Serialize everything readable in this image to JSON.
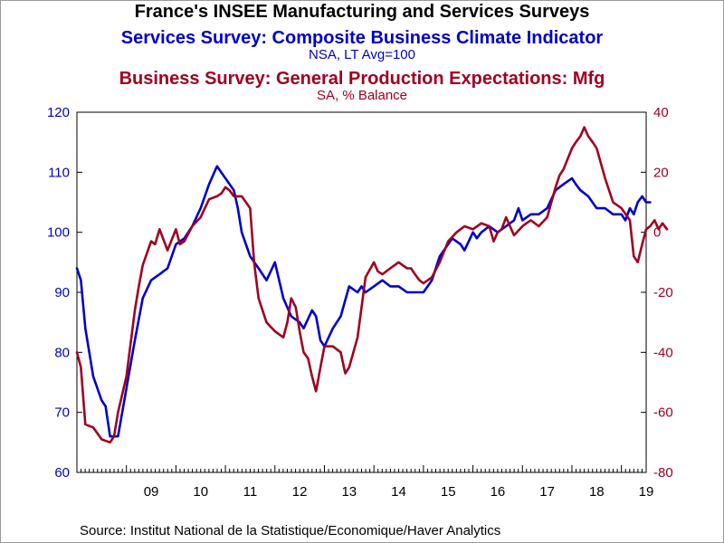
{
  "header": {
    "title": "France's INSEE Manufacturing and Services Surveys",
    "series1_title": "Services Survey: Composite Business Climate Indicator",
    "series1_units": "NSA, LT Avg=100",
    "series2_title": "Business Survey: General Production Expectations: Mfg",
    "series2_units": "SA, % Balance"
  },
  "footer": {
    "source": "Source:  Institut National de la Statistique/Economique/Haver Analytics"
  },
  "colors": {
    "series1": "#0000cc",
    "series2": "#a00020"
  },
  "chart_data": {
    "type": "line",
    "x_ticks": [
      "09",
      "10",
      "11",
      "12",
      "13",
      "14",
      "15",
      "16",
      "17",
      "18",
      "19"
    ],
    "x_range": [
      2008.0,
      2019.5
    ],
    "y_left": {
      "ticks": [
        60,
        70,
        80,
        90,
        100,
        110,
        120
      ],
      "range": [
        60,
        120
      ]
    },
    "y_right": {
      "ticks": [
        -80,
        -60,
        -40,
        -20,
        0,
        20,
        40
      ],
      "range": [
        -80,
        40
      ]
    },
    "grid": false,
    "series": [
      {
        "axis": "left",
        "color": "#0000cc",
        "points": [
          [
            2008.0,
            94
          ],
          [
            2008.08,
            92
          ],
          [
            2008.17,
            84
          ],
          [
            2008.33,
            76
          ],
          [
            2008.5,
            72
          ],
          [
            2008.58,
            71
          ],
          [
            2008.67,
            66
          ],
          [
            2008.83,
            66
          ],
          [
            2009.0,
            74
          ],
          [
            2009.17,
            82
          ],
          [
            2009.33,
            89
          ],
          [
            2009.5,
            92
          ],
          [
            2009.67,
            93
          ],
          [
            2009.83,
            94
          ],
          [
            2010.0,
            98
          ],
          [
            2010.17,
            99
          ],
          [
            2010.33,
            101
          ],
          [
            2010.5,
            104
          ],
          [
            2010.67,
            108
          ],
          [
            2010.83,
            111
          ],
          [
            2011.0,
            109
          ],
          [
            2011.17,
            107
          ],
          [
            2011.25,
            104
          ],
          [
            2011.33,
            100
          ],
          [
            2011.5,
            96
          ],
          [
            2011.67,
            94
          ],
          [
            2011.83,
            92
          ],
          [
            2012.0,
            95
          ],
          [
            2012.17,
            89
          ],
          [
            2012.33,
            86
          ],
          [
            2012.5,
            85
          ],
          [
            2012.58,
            84
          ],
          [
            2012.75,
            87
          ],
          [
            2012.83,
            86
          ],
          [
            2012.92,
            82
          ],
          [
            2013.0,
            81
          ],
          [
            2013.17,
            84
          ],
          [
            2013.33,
            86
          ],
          [
            2013.5,
            91
          ],
          [
            2013.67,
            90
          ],
          [
            2013.75,
            91
          ],
          [
            2013.83,
            90
          ],
          [
            2014.0,
            91
          ],
          [
            2014.17,
            92
          ],
          [
            2014.33,
            91
          ],
          [
            2014.5,
            91
          ],
          [
            2014.67,
            90
          ],
          [
            2014.83,
            90
          ],
          [
            2015.0,
            90
          ],
          [
            2015.17,
            92
          ],
          [
            2015.33,
            96
          ],
          [
            2015.5,
            98
          ],
          [
            2015.58,
            99
          ],
          [
            2015.75,
            98
          ],
          [
            2015.83,
            97
          ],
          [
            2016.0,
            100
          ],
          [
            2016.08,
            99
          ],
          [
            2016.17,
            100
          ],
          [
            2016.33,
            101
          ],
          [
            2016.5,
            100
          ],
          [
            2016.67,
            101
          ],
          [
            2016.83,
            102
          ],
          [
            2016.92,
            104
          ],
          [
            2017.0,
            102
          ],
          [
            2017.17,
            103
          ],
          [
            2017.33,
            103
          ],
          [
            2017.5,
            104
          ],
          [
            2017.67,
            107
          ],
          [
            2017.83,
            108
          ],
          [
            2018.0,
            109
          ],
          [
            2018.08,
            108
          ],
          [
            2018.17,
            107
          ],
          [
            2018.33,
            106
          ],
          [
            2018.5,
            104
          ],
          [
            2018.67,
            104
          ],
          [
            2018.83,
            103
          ],
          [
            2019.0,
            103
          ],
          [
            2019.08,
            102
          ],
          [
            2019.17,
            104
          ],
          [
            2019.25,
            103
          ],
          [
            2019.33,
            105
          ],
          [
            2019.42,
            106
          ],
          [
            2019.5,
            105
          ],
          [
            2019.58,
            105
          ]
        ]
      },
      {
        "axis": "right",
        "color": "#a00020",
        "points": [
          [
            2008.0,
            -40
          ],
          [
            2008.08,
            -45
          ],
          [
            2008.17,
            -64
          ],
          [
            2008.33,
            -65
          ],
          [
            2008.5,
            -69
          ],
          [
            2008.67,
            -70
          ],
          [
            2008.75,
            -68
          ],
          [
            2008.83,
            -60
          ],
          [
            2009.0,
            -48
          ],
          [
            2009.17,
            -26
          ],
          [
            2009.25,
            -18
          ],
          [
            2009.33,
            -11
          ],
          [
            2009.5,
            -3
          ],
          [
            2009.58,
            -4
          ],
          [
            2009.67,
            1
          ],
          [
            2009.83,
            -6
          ],
          [
            2010.0,
            1
          ],
          [
            2010.08,
            -4
          ],
          [
            2010.17,
            -3
          ],
          [
            2010.33,
            2
          ],
          [
            2010.5,
            5
          ],
          [
            2010.67,
            11
          ],
          [
            2010.83,
            12
          ],
          [
            2010.92,
            13
          ],
          [
            2011.0,
            15
          ],
          [
            2011.08,
            14
          ],
          [
            2011.17,
            12
          ],
          [
            2011.33,
            12
          ],
          [
            2011.5,
            8
          ],
          [
            2011.58,
            -10
          ],
          [
            2011.67,
            -22
          ],
          [
            2011.83,
            -30
          ],
          [
            2012.0,
            -33
          ],
          [
            2012.17,
            -35
          ],
          [
            2012.25,
            -30
          ],
          [
            2012.33,
            -22
          ],
          [
            2012.42,
            -25
          ],
          [
            2012.5,
            -33
          ],
          [
            2012.58,
            -40
          ],
          [
            2012.67,
            -42
          ],
          [
            2012.75,
            -48
          ],
          [
            2012.83,
            -53
          ],
          [
            2012.92,
            -45
          ],
          [
            2013.0,
            -38
          ],
          [
            2013.17,
            -38
          ],
          [
            2013.33,
            -40
          ],
          [
            2013.42,
            -47
          ],
          [
            2013.5,
            -45
          ],
          [
            2013.67,
            -35
          ],
          [
            2013.75,
            -25
          ],
          [
            2013.83,
            -15
          ],
          [
            2014.0,
            -10
          ],
          [
            2014.08,
            -13
          ],
          [
            2014.17,
            -14
          ],
          [
            2014.33,
            -12
          ],
          [
            2014.5,
            -10
          ],
          [
            2014.58,
            -11
          ],
          [
            2014.67,
            -12
          ],
          [
            2014.75,
            -12
          ],
          [
            2014.83,
            -14
          ],
          [
            2014.92,
            -16
          ],
          [
            2015.0,
            -17
          ],
          [
            2015.17,
            -15
          ],
          [
            2015.33,
            -10
          ],
          [
            2015.5,
            -3
          ],
          [
            2015.67,
            0
          ],
          [
            2015.83,
            2
          ],
          [
            2016.0,
            1
          ],
          [
            2016.17,
            3
          ],
          [
            2016.33,
            2
          ],
          [
            2016.42,
            -3
          ],
          [
            2016.5,
            0
          ],
          [
            2016.58,
            1
          ],
          [
            2016.67,
            5
          ],
          [
            2016.83,
            -1
          ],
          [
            2017.0,
            2
          ],
          [
            2017.08,
            3
          ],
          [
            2017.17,
            4
          ],
          [
            2017.33,
            2
          ],
          [
            2017.5,
            5
          ],
          [
            2017.67,
            15
          ],
          [
            2017.75,
            19
          ],
          [
            2017.83,
            21
          ],
          [
            2018.0,
            28
          ],
          [
            2018.08,
            30
          ],
          [
            2018.17,
            32
          ],
          [
            2018.25,
            35
          ],
          [
            2018.33,
            32
          ],
          [
            2018.42,
            30
          ],
          [
            2018.5,
            28
          ],
          [
            2018.67,
            18
          ],
          [
            2018.83,
            10
          ],
          [
            2019.0,
            8
          ],
          [
            2019.17,
            4
          ],
          [
            2019.25,
            -8
          ],
          [
            2019.33,
            -10
          ],
          [
            2019.42,
            -4
          ],
          [
            2019.5,
            1
          ],
          [
            2019.58,
            2
          ],
          [
            2019.67,
            4
          ],
          [
            2019.75,
            1
          ],
          [
            2019.83,
            3
          ],
          [
            2019.92,
            1
          ]
        ]
      }
    ]
  }
}
